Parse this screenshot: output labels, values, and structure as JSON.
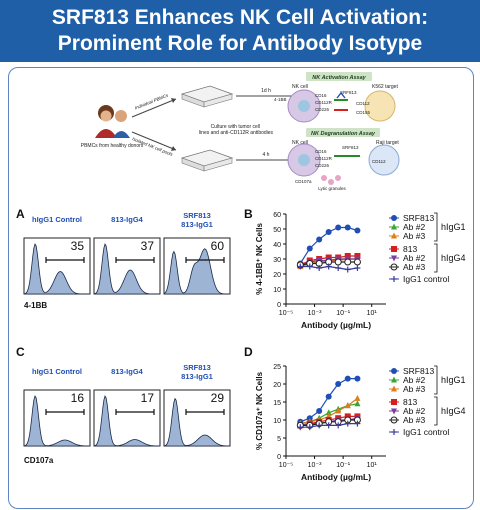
{
  "header": {
    "title_line1": "SRF813 Enhances NK Cell Activation:",
    "title_line2": "Prominent Role for Antibody Isotype"
  },
  "colors": {
    "banner": "#1f5fa8",
    "srf813": "#1f4fb5",
    "ab2_igg1": "#3aa635",
    "ab3_igg1": "#e07d1a",
    "igg4_813": "#d42020",
    "ab2_igg4": "#7a3fa0",
    "ab3_igg4": "#222222",
    "control": "#3a3a9a",
    "histogram_fill": "#9db4d4"
  },
  "schematic": {
    "donor_label": "PBMCs from healthy donors",
    "arrow_top_label": "Individual PBMCs",
    "arrow_bottom_label": "Isolated NK cell pools",
    "culture_text": "Culture with tumor cell lines and anti-CD112R antibodies",
    "time_top": "1d h",
    "time_bottom": "4 h",
    "assay_top_title": "NK Activation Assay",
    "assay_bottom_title": "NK Degranulation Assay",
    "top_nk_label": "NK cell",
    "top_target_label": "K562 target",
    "top_molecules": [
      "4-1BB",
      "CD16",
      "CD112R",
      "CD226",
      "SRF813",
      "CD112",
      "CD155"
    ],
    "bottom_nk_label": "NK cell",
    "bottom_target_label": "Raji target",
    "bottom_molecules": [
      "CD16",
      "CD112R",
      "CD226",
      "SRF813",
      "CD112",
      "CD107a"
    ],
    "granules_label": "Lytic granules"
  },
  "panels": {
    "A": {
      "label": "A",
      "xaxis": "4-1BB",
      "histograms": [
        {
          "title": "hIgG1 Control",
          "percent": "35"
        },
        {
          "title": "813-IgG4",
          "percent": "37"
        },
        {
          "title": "SRF813\n813-IgG1",
          "percent": "60"
        }
      ]
    },
    "C": {
      "label": "C",
      "xaxis": "CD107a",
      "histograms": [
        {
          "title": "hIgG1 Control",
          "percent": "16"
        },
        {
          "title": "813-IgG4",
          "percent": "17"
        },
        {
          "title": "SRF813\n813-IgG1",
          "percent": "29"
        }
      ]
    },
    "B": {
      "label": "B"
    },
    "D": {
      "label": "D"
    }
  },
  "legend": {
    "top_entries": [
      "SRF813",
      "Ab #2",
      "Ab #3"
    ],
    "top_group": "hIgG1",
    "bottom_entries": [
      "813",
      "Ab #2",
      "Ab #3"
    ],
    "bottom_group": "hIgG4",
    "control": "IgG1 control"
  },
  "chart_data": [
    {
      "type": "line",
      "panel": "B",
      "title": "",
      "xlabel": "Antibody (µg/mL)",
      "ylabel": "% 4-1BB⁺ NK Cells",
      "xscale": "log",
      "xlim": [
        1e-05,
        100
      ],
      "xticks": [
        "10⁻⁵",
        "10⁻³",
        "10⁻¹",
        "10¹"
      ],
      "ylim": [
        0,
        60
      ],
      "yticks": [
        0,
        10,
        20,
        30,
        40,
        50,
        60
      ],
      "x": [
        0.0001,
        0.00046,
        0.0021,
        0.0097,
        0.045,
        0.21,
        1.0
      ],
      "series": [
        {
          "name": "SRF813",
          "group": "hIgG1",
          "marker": "circle",
          "color": "#1f4fb5",
          "values": [
            27,
            37,
            43,
            48,
            51,
            51,
            49
          ]
        },
        {
          "name": "Ab #2",
          "group": "hIgG1",
          "marker": "triangle-up",
          "color": "#3aa635",
          "values": [
            25,
            27,
            28,
            29,
            30,
            30,
            30
          ]
        },
        {
          "name": "Ab #3",
          "group": "hIgG1",
          "marker": "triangle-up",
          "color": "#e07d1a",
          "values": [
            25,
            27,
            28,
            29,
            29,
            30,
            30
          ]
        },
        {
          "name": "813",
          "group": "hIgG4",
          "marker": "square",
          "color": "#d42020",
          "values": [
            26,
            29,
            30,
            31,
            31,
            32,
            32
          ]
        },
        {
          "name": "Ab #2",
          "group": "hIgG4",
          "marker": "triangle-down",
          "color": "#7a3fa0",
          "values": [
            26,
            28,
            29,
            29,
            30,
            30,
            30
          ]
        },
        {
          "name": "Ab #3",
          "group": "hIgG4",
          "marker": "circle-open",
          "color": "#222222",
          "values": [
            26,
            27,
            27,
            28,
            28,
            28,
            28
          ]
        },
        {
          "name": "IgG1 control",
          "group": "",
          "marker": "cross",
          "color": "#3a3a9a",
          "values": [
            25,
            25,
            24,
            25,
            24,
            23,
            24
          ]
        }
      ]
    },
    {
      "type": "line",
      "panel": "D",
      "title": "",
      "xlabel": "Antibody (µg/mL)",
      "ylabel": "% CD107a⁺ NK Cells",
      "xscale": "log",
      "xlim": [
        1e-05,
        100
      ],
      "xticks": [
        "10⁻⁵",
        "10⁻³",
        "10⁻¹",
        "10¹"
      ],
      "ylim": [
        0,
        25
      ],
      "yticks": [
        0,
        5,
        10,
        15,
        20,
        25
      ],
      "x": [
        0.0001,
        0.00046,
        0.0021,
        0.0097,
        0.045,
        0.21,
        1.0
      ],
      "series": [
        {
          "name": "SRF813",
          "group": "hIgG1",
          "marker": "circle",
          "color": "#1f4fb5",
          "values": [
            9.5,
            10.5,
            12.5,
            16.5,
            20,
            21.5,
            21.5
          ]
        },
        {
          "name": "Ab #2",
          "group": "hIgG1",
          "marker": "triangle-up",
          "color": "#3aa635",
          "values": [
            9,
            9.5,
            10.5,
            12,
            13,
            14,
            14.5
          ]
        },
        {
          "name": "Ab #3",
          "group": "hIgG1",
          "marker": "triangle-up",
          "color": "#e07d1a",
          "values": [
            9,
            9.5,
            10,
            11,
            12.5,
            14,
            16
          ]
        },
        {
          "name": "813",
          "group": "hIgG4",
          "marker": "square",
          "color": "#d42020",
          "values": [
            8.5,
            9,
            9.5,
            10,
            10.5,
            11,
            11
          ]
        },
        {
          "name": "Ab #2",
          "group": "hIgG4",
          "marker": "triangle-down",
          "color": "#7a3fa0",
          "values": [
            8.5,
            9,
            9,
            9.5,
            10,
            10,
            10.5
          ]
        },
        {
          "name": "Ab #3",
          "group": "hIgG4",
          "marker": "circle-open",
          "color": "#222222",
          "values": [
            8.5,
            8.5,
            9,
            9.5,
            9.5,
            10,
            10
          ]
        },
        {
          "name": "IgG1 control",
          "group": "",
          "marker": "cross",
          "color": "#3a3a9a",
          "values": [
            8,
            8,
            8.5,
            8.5,
            8.5,
            9,
            9
          ]
        }
      ]
    }
  ]
}
